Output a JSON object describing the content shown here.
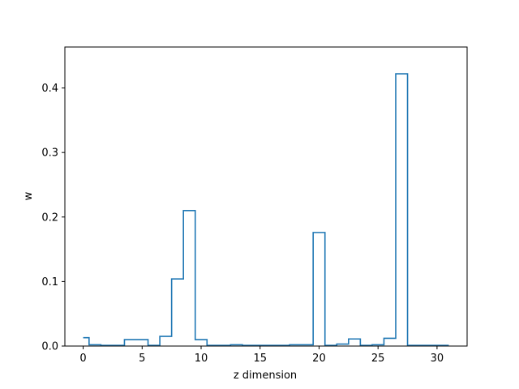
{
  "chart_data": {
    "type": "line",
    "drawstyle": "steps-mid",
    "title": "",
    "xlabel": "z dimension",
    "ylabel": "w",
    "xlim": [
      -1.55,
      32.55
    ],
    "ylim": [
      0,
      0.4635
    ],
    "xticks": [
      0,
      5,
      10,
      15,
      20,
      25,
      30
    ],
    "yticks": [
      0.0,
      0.1,
      0.2,
      0.3,
      0.4
    ],
    "ytick_labels": [
      "0.0",
      "0.1",
      "0.2",
      "0.3",
      "0.4"
    ],
    "grid": false,
    "legend": "none",
    "series": [
      {
        "color": "#1f77b4",
        "x": [
          0,
          1,
          2,
          3,
          4,
          5,
          6,
          7,
          8,
          9,
          10,
          11,
          12,
          13,
          14,
          15,
          16,
          17,
          18,
          19,
          20,
          21,
          22,
          23,
          24,
          25,
          26,
          27,
          28,
          29,
          30,
          31
        ],
        "values": [
          0.013,
          0.002,
          0.001,
          0.001,
          0.01,
          0.01,
          0.001,
          0.015,
          0.104,
          0.21,
          0.01,
          0.001,
          0.001,
          0.002,
          0.001,
          0.001,
          0.001,
          0.001,
          0.002,
          0.002,
          0.176,
          0.001,
          0.003,
          0.011,
          0.001,
          0.002,
          0.012,
          0.422,
          0.001,
          0.001,
          0.001,
          0.001
        ]
      }
    ]
  }
}
